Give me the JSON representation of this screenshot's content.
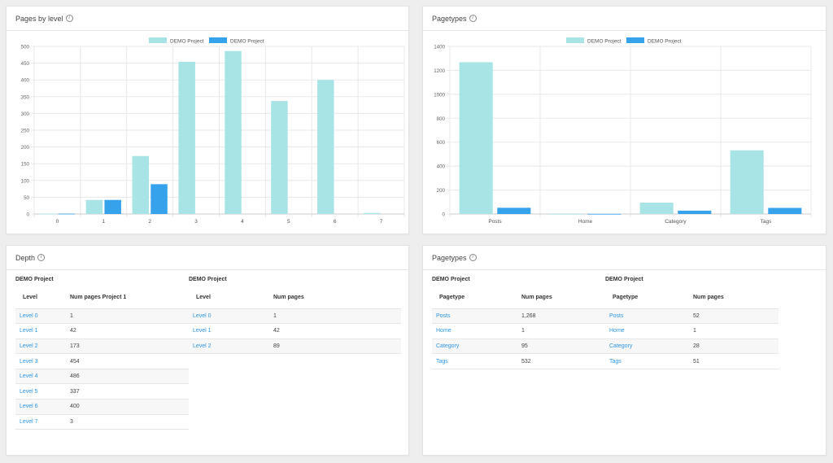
{
  "colors": {
    "light_series": "#a8e4e6",
    "dark_series": "#36a2eb",
    "link": "#2f96e6"
  },
  "cards": {
    "pages_by_level": {
      "title": "Pages by level"
    },
    "pagetypes_chart": {
      "title": "Pagetypes"
    },
    "depth": {
      "title": "Depth"
    },
    "pagetypes_table": {
      "title": "Pagetypes"
    }
  },
  "chart_data": [
    {
      "type": "bar",
      "title": "Pages by level",
      "categories": [
        "0",
        "1",
        "2",
        "3",
        "4",
        "5",
        "6",
        "7"
      ],
      "series": [
        {
          "name": "DEMO Project",
          "color": "#a8e4e6",
          "values": [
            1,
            42,
            173,
            454,
            486,
            337,
            400,
            3
          ]
        },
        {
          "name": "DEMO Project",
          "color": "#36a2eb",
          "values": [
            1,
            42,
            89,
            0,
            0,
            0,
            0,
            0
          ]
        }
      ],
      "ylim": [
        0,
        500
      ],
      "yticks": [
        0,
        50,
        100,
        150,
        200,
        250,
        300,
        350,
        400,
        450,
        500
      ],
      "legend": "top-center",
      "grid": true
    },
    {
      "type": "bar",
      "title": "Pagetypes",
      "categories": [
        "Posts",
        "Home",
        "Category",
        "Tags"
      ],
      "series": [
        {
          "name": "DEMO Project",
          "color": "#a8e4e6",
          "values": [
            1268,
            1,
            95,
            532
          ]
        },
        {
          "name": "DEMO Project",
          "color": "#36a2eb",
          "values": [
            52,
            1,
            28,
            51
          ]
        }
      ],
      "ylim": [
        0,
        1400
      ],
      "yticks": [
        0,
        200,
        400,
        600,
        800,
        1000,
        1200,
        1400
      ],
      "legend": "top-center",
      "grid": true
    }
  ],
  "depth": {
    "tables": [
      {
        "title": "DEMO Project",
        "headers": [
          "Level",
          "Num pages Project 1"
        ],
        "rows": [
          [
            "Level 0",
            "1"
          ],
          [
            "Level 1",
            "42"
          ],
          [
            "Level 2",
            "173"
          ],
          [
            "Level 3",
            "454"
          ],
          [
            "Level 4",
            "486"
          ],
          [
            "Level 5",
            "337"
          ],
          [
            "Level 6",
            "400"
          ],
          [
            "Level 7",
            "3"
          ]
        ]
      },
      {
        "title": "DEMO Project",
        "headers": [
          "Level",
          "Num pages"
        ],
        "rows": [
          [
            "Level 0",
            "1"
          ],
          [
            "Level 1",
            "42"
          ],
          [
            "Level 2",
            "89"
          ]
        ]
      }
    ]
  },
  "pagetypes": {
    "tables": [
      {
        "title": "DEMO Project",
        "headers": [
          "Pagetype",
          "Num pages"
        ],
        "rows": [
          [
            "Posts",
            "1,268"
          ],
          [
            "Home",
            "1"
          ],
          [
            "Category",
            "95"
          ],
          [
            "Tags",
            "532"
          ]
        ]
      },
      {
        "title": "DEMO Project",
        "headers": [
          "Pagetype",
          "Num pages"
        ],
        "rows": [
          [
            "Posts",
            "52"
          ],
          [
            "Home",
            "1"
          ],
          [
            "Category",
            "28"
          ],
          [
            "Tags",
            "51"
          ]
        ]
      }
    ]
  }
}
